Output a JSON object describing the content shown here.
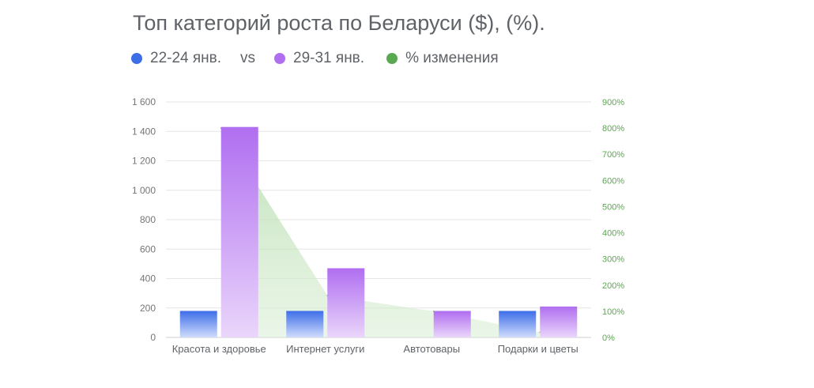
{
  "title": "Топ категорий роста по Беларуси ($), (%).",
  "legend": {
    "series_a": "22-24 янв.",
    "vs": "vs",
    "series_b": "29-31 янв.",
    "series_c": "% изменения"
  },
  "colors": {
    "series_a": "#3d6ee8",
    "series_b": "#b06ef0",
    "series_c": "#5aa84f",
    "text": "#5f6368",
    "grid": "#e6e6e6"
  },
  "chart_data": {
    "type": "bar",
    "categories": [
      "Красота и здоровье",
      "Интернет услуги",
      "Автотовары",
      "Подарки и цветы"
    ],
    "series": [
      {
        "name": "22-24 янв.",
        "axis": "left",
        "values": [
          180,
          180,
          null,
          180
        ]
      },
      {
        "name": "29-31 янв.",
        "axis": "left",
        "values": [
          1430,
          470,
          180,
          210
        ]
      },
      {
        "name": "% изменения",
        "axis": "right",
        "type": "area",
        "values": [
          800,
          160,
          100,
          20
        ]
      }
    ],
    "y_left": {
      "min": 0,
      "max": 1600,
      "ticks": [
        0,
        200,
        400,
        600,
        800,
        1000,
        1200,
        1400,
        1600
      ],
      "tick_labels": [
        "0",
        "200",
        "400",
        "600",
        "800",
        "1 000",
        "1 200",
        "1 400",
        "1 600"
      ]
    },
    "y_right": {
      "min": 0,
      "max": 900,
      "ticks": [
        0,
        100,
        200,
        300,
        400,
        500,
        600,
        700,
        800,
        900
      ],
      "tick_labels": [
        "0%",
        "100%",
        "200%",
        "300%",
        "400%",
        "500%",
        "600%",
        "700%",
        "800%",
        "900%"
      ]
    },
    "grid": true,
    "legend_position": "top-left"
  }
}
